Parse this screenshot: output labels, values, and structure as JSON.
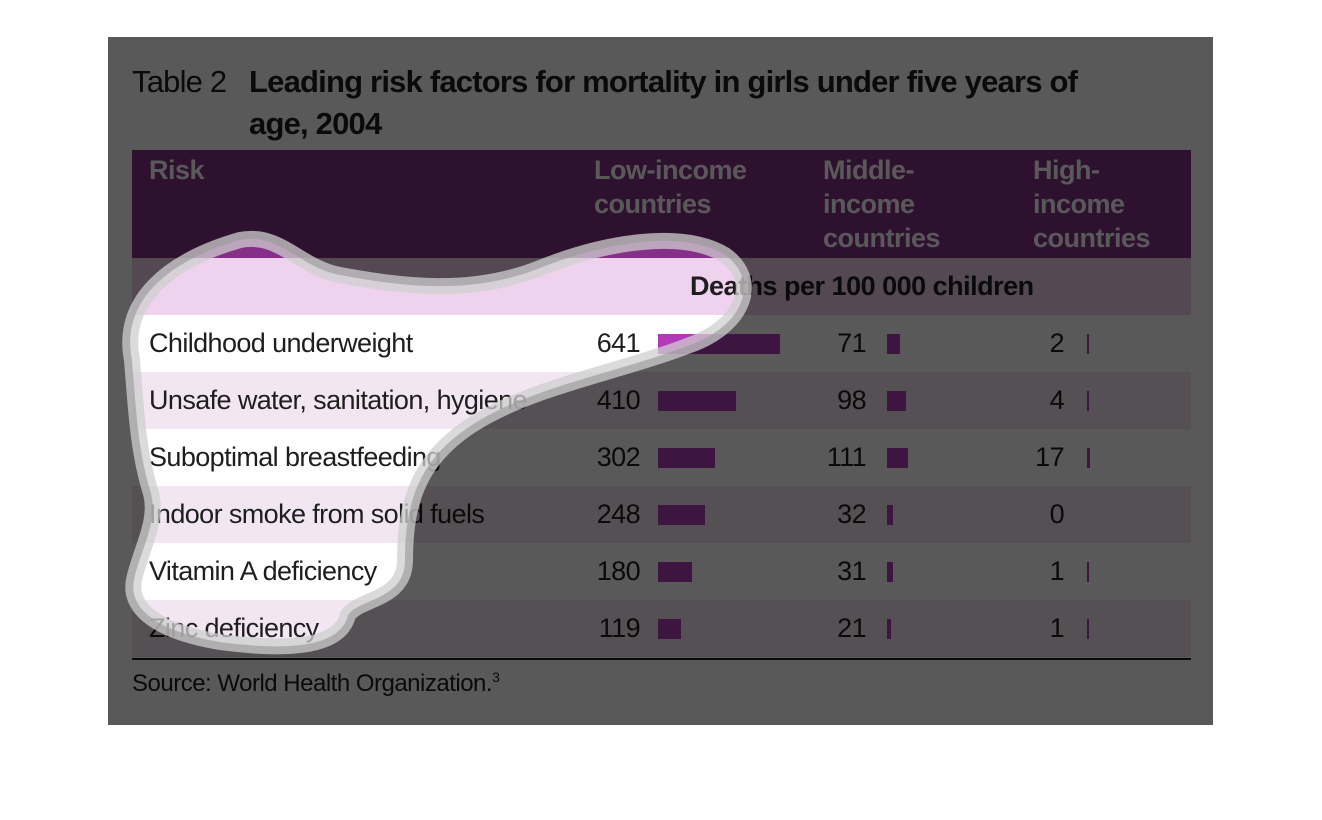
{
  "title_label": "Table 2",
  "title": "Leading risk factors for mortality in girls under five years of age, 2004",
  "table": {
    "headers": [
      "Risk",
      "Low-income countries",
      "Middle-income countries",
      "High-income countries"
    ],
    "unit_row": "Deaths per 100 000 children",
    "rows": [
      [
        "Childhood underweight",
        641,
        71,
        2
      ],
      [
        "Unsafe water, sanitation, hygiene",
        410,
        98,
        4
      ],
      [
        "Suboptimal breastfeeding",
        302,
        111,
        17
      ],
      [
        "Indoor smoke from solid fuels",
        248,
        32,
        0
      ],
      [
        "Vitamin A deficiency",
        180,
        31,
        1
      ],
      [
        "Zinc deficiency",
        119,
        21,
        1
      ]
    ]
  },
  "source": {
    "text": "Source: World Health Organization.",
    "note": "3"
  }
}
